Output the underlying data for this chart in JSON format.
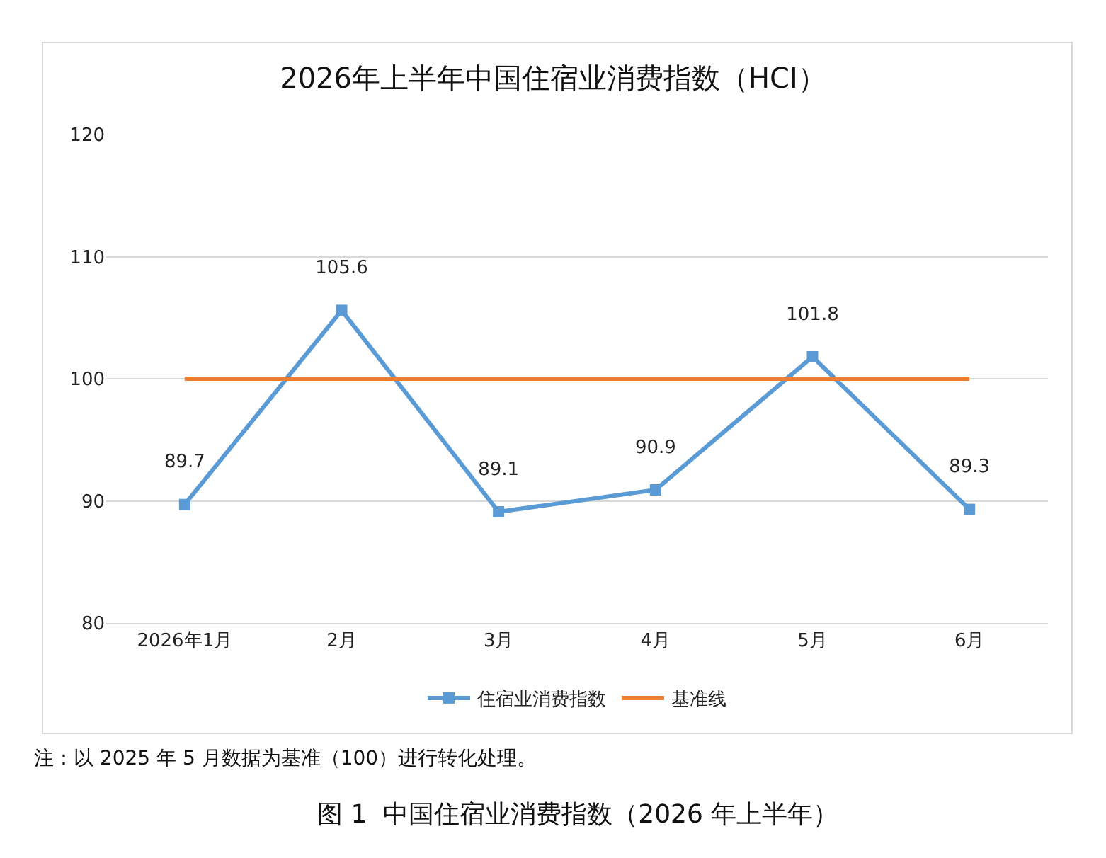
{
  "chart_data": {
    "type": "line",
    "title": "2026年上半年中国住宿业消费指数（HCI）",
    "categories": [
      "2026年1月",
      "2月",
      "3月",
      "4月",
      "5月",
      "6月"
    ],
    "series": [
      {
        "name": "住宿业消费指数",
        "color": "#5b9bd5",
        "values": [
          89.7,
          105.6,
          89.1,
          90.9,
          101.8,
          89.3
        ],
        "marker": "square",
        "value_labels": [
          "89.7",
          "105.6",
          "89.1",
          "90.9",
          "101.8",
          "89.3"
        ]
      },
      {
        "name": "基准线",
        "color": "#ed7d31",
        "values": [
          100,
          100,
          100,
          100,
          100,
          100
        ],
        "marker": "none"
      }
    ],
    "ylim": [
      80,
      120
    ],
    "yticks": [
      80,
      90,
      100,
      110,
      120
    ],
    "grid": "y",
    "legend": "bottom",
    "annotations": [
      "注：以 2025 年 5 月数据为基准（100）进行转化处理。",
      "图 1  中国住宿业消费指数（2026 年上半年）"
    ]
  }
}
